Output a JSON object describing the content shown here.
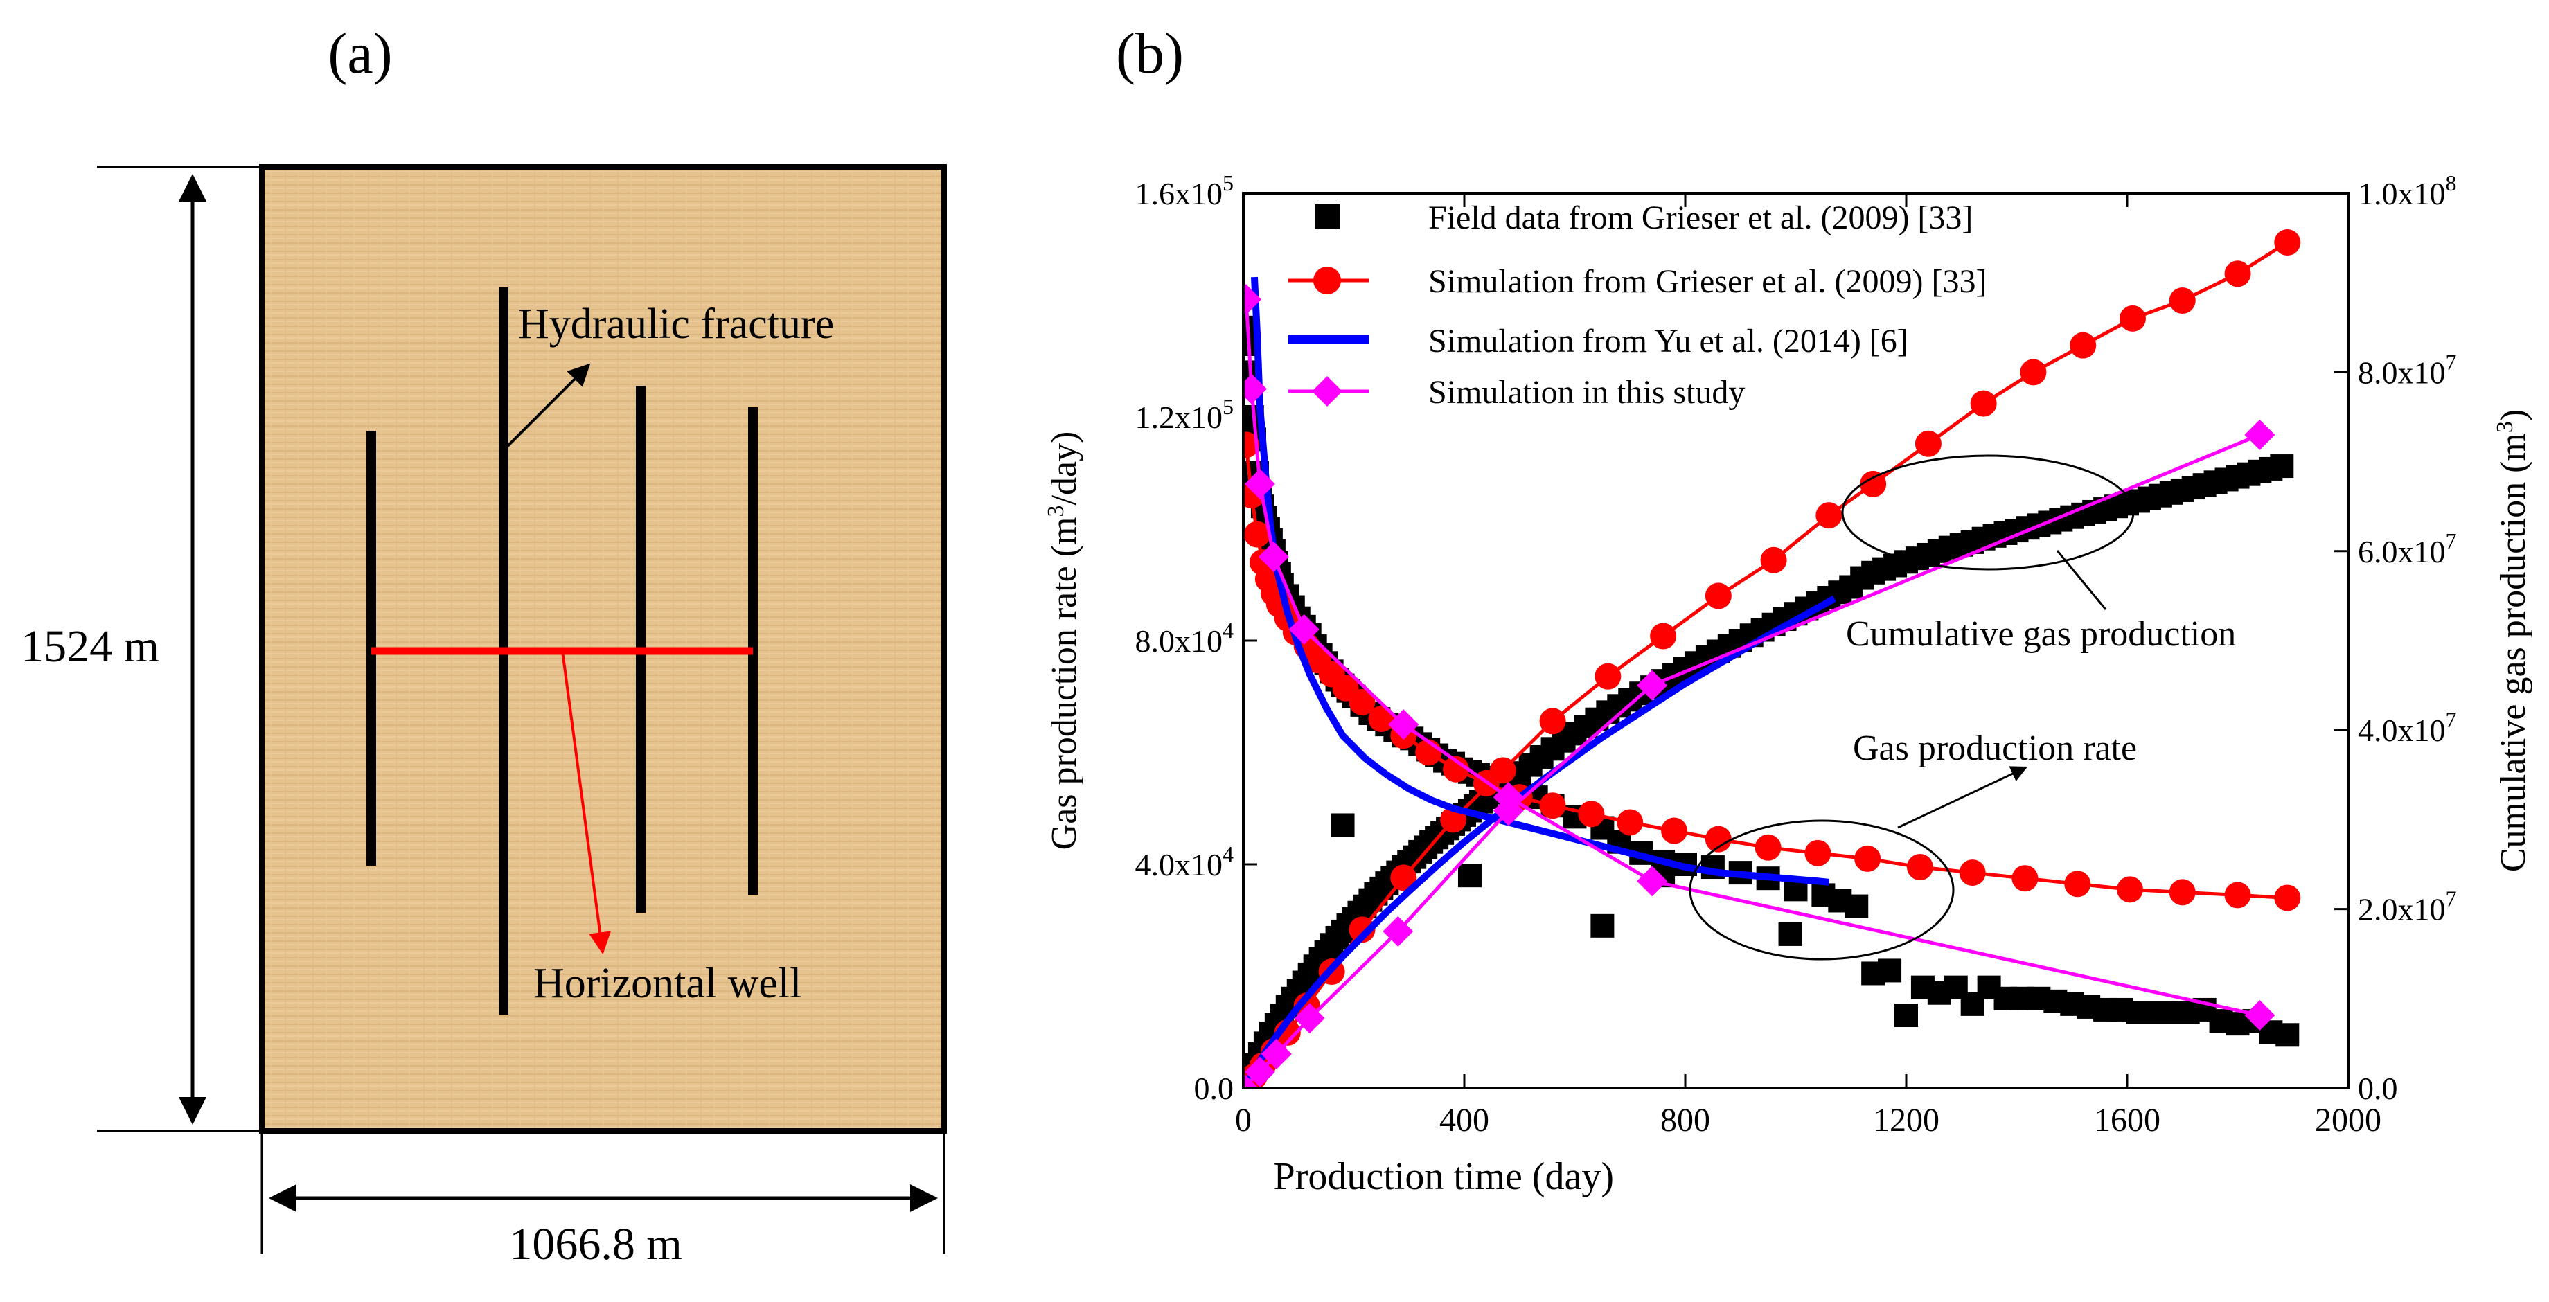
{
  "panel_a": {
    "label": "(a)",
    "height_label": "1524 m",
    "width_label": "1066.8 m",
    "fracture_label": "Hydraulic  fracture",
    "well_label": "Horizontal  well",
    "colors": {
      "reservoir": "#E6C38E",
      "fracture": "#000000",
      "well": "#FF0000"
    }
  },
  "panel_b": {
    "label": "(b)",
    "annotation_cumulative": "Cumulative gas production",
    "annotation_rate": "Gas production rate"
  },
  "chart_data": {
    "type": "scatter+line",
    "title": "",
    "xlabel": "Production time (day)",
    "ylabel_left": "Gas production rate (m",
    "ylabel_left_sup": "3",
    "ylabel_left_tail": "/day)",
    "ylabel_right": "Cumulative gas production (m",
    "ylabel_right_sup": "3",
    "ylabel_right_tail": ")",
    "xlim": [
      0,
      2000
    ],
    "ylim_left": [
      0,
      160000
    ],
    "ylim_right": [
      0,
      100000000
    ],
    "x_ticks": [
      {
        "v": 0,
        "label": "0"
      },
      {
        "v": 400,
        "label": "400"
      },
      {
        "v": 800,
        "label": "800"
      },
      {
        "v": 1200,
        "label": "1200"
      },
      {
        "v": 1600,
        "label": "1600"
      },
      {
        "v": 2000,
        "label": "2000"
      }
    ],
    "y_left_ticks": [
      {
        "v": 0,
        "m": "0.0",
        "e": ""
      },
      {
        "v": 40000,
        "m": "4.0x10",
        "e": "4"
      },
      {
        "v": 80000,
        "m": "8.0x10",
        "e": "4"
      },
      {
        "v": 120000,
        "m": "1.2x10",
        "e": "5"
      },
      {
        "v": 160000,
        "m": "1.6x10",
        "e": "5"
      }
    ],
    "y_right_ticks": [
      {
        "v": 0,
        "m": "0.0",
        "e": ""
      },
      {
        "v": 20000000,
        "m": "2.0x10",
        "e": "7"
      },
      {
        "v": 40000000,
        "m": "4.0x10",
        "e": "7"
      },
      {
        "v": 60000000,
        "m": "6.0x10",
        "e": "7"
      },
      {
        "v": 80000000,
        "m": "8.0x10",
        "e": "7"
      },
      {
        "v": 100000000,
        "m": "1.0x10",
        "e": "8"
      }
    ],
    "legend_position": "top-left",
    "series": [
      {
        "name": "Field data from Grieser et al. (2009) [33]",
        "key": "field",
        "color": "#000000",
        "marker": "square",
        "line": false,
        "rate": {
          "x": [
            5,
            8,
            12,
            16,
            20,
            25,
            30,
            35,
            40,
            45,
            50,
            55,
            60,
            65,
            70,
            80,
            90,
            100,
            110,
            120,
            130,
            140,
            150,
            160,
            170,
            180,
            190,
            200,
            215,
            230,
            245,
            260,
            275,
            290,
            305,
            320,
            335,
            350,
            365,
            380,
            395,
            410,
            425,
            440,
            455,
            470,
            485,
            500,
            530,
            560,
            600,
            650,
            680,
            720,
            760,
            800,
            850,
            900,
            950,
            1000,
            1050,
            1080,
            1110,
            1140,
            1170,
            1200,
            1230,
            1260,
            1290,
            1320,
            1350,
            1380,
            1410,
            1440,
            1470,
            1500,
            1530,
            1560,
            1590,
            1620,
            1650,
            1680,
            1710,
            1740,
            1770,
            1800,
            1830,
            1860,
            1890,
            180,
            410,
            650,
            760,
            990
          ],
          "y": [
            136000,
            133000,
            128000,
            120000,
            116000,
            110000,
            106000,
            104000,
            102000,
            100000,
            98000,
            96000,
            94000,
            92000,
            90000,
            88000,
            86000,
            84000,
            82500,
            81000,
            79000,
            77500,
            76000,
            74500,
            73000,
            72000,
            71000,
            70000,
            68500,
            67000,
            66000,
            65000,
            64000,
            63000,
            62500,
            61500,
            60500,
            59500,
            58500,
            58000,
            57000,
            56500,
            56000,
            55500,
            55000,
            54500,
            54000,
            53500,
            52000,
            50500,
            48500,
            46500,
            44000,
            42000,
            40500,
            40000,
            39500,
            38500,
            37500,
            35500,
            34500,
            33500,
            32500,
            20500,
            21000,
            13000,
            18000,
            17000,
            18000,
            15000,
            18000,
            16000,
            16000,
            16000,
            15500,
            15000,
            14500,
            14000,
            14000,
            13500,
            13500,
            13500,
            13500,
            14000,
            12000,
            11500,
            12000,
            10000,
            9500,
            47000,
            38000,
            29000,
            38000,
            27500
          ]
        },
        "cumulative": {
          "x": [
            10,
            20,
            30,
            40,
            50,
            60,
            70,
            80,
            90,
            100,
            110,
            120,
            130,
            140,
            150,
            160,
            170,
            180,
            190,
            200,
            210,
            220,
            230,
            240,
            250,
            260,
            270,
            280,
            290,
            300,
            310,
            320,
            330,
            340,
            350,
            360,
            370,
            380,
            390,
            400,
            410,
            420,
            430,
            440,
            450,
            460,
            470,
            480,
            490,
            500,
            520,
            540,
            560,
            580,
            600,
            620,
            640,
            660,
            680,
            700,
            720,
            740,
            760,
            780,
            800,
            820,
            840,
            860,
            880,
            900,
            920,
            940,
            960,
            980,
            1000,
            1020,
            1040,
            1060,
            1080,
            1100,
            1120,
            1140,
            1160,
            1180,
            1200,
            1220,
            1240,
            1260,
            1280,
            1300,
            1320,
            1340,
            1360,
            1380,
            1400,
            1420,
            1440,
            1460,
            1480,
            1500,
            1520,
            1540,
            1560,
            1580,
            1600,
            1620,
            1640,
            1660,
            1680,
            1700,
            1720,
            1740,
            1760,
            1780,
            1800,
            1820,
            1840,
            1860,
            1880
          ],
          "y": [
            1300000,
            2600000,
            3800000,
            5000000,
            6100000,
            7100000,
            8100000,
            9100000,
            10000000,
            10900000,
            11800000,
            12700000,
            13600000,
            14400000,
            15200000,
            16000000,
            16800000,
            17500000,
            18200000,
            18900000,
            19600000,
            20300000,
            21000000,
            21700000,
            22300000,
            22900000,
            23500000,
            24100000,
            24700000,
            25300000,
            25800000,
            26400000,
            26900000,
            27500000,
            28000000,
            28500000,
            29000000,
            29500000,
            30000000,
            30500000,
            31000000,
            31500000,
            32000000,
            32500000,
            33000000,
            33400000,
            33900000,
            34300000,
            34800000,
            35200000,
            36100000,
            37000000,
            37900000,
            38800000,
            39600000,
            40400000,
            41200000,
            42000000,
            42700000,
            43400000,
            44100000,
            44800000,
            45500000,
            46200000,
            46900000,
            47500000,
            48200000,
            48800000,
            49400000,
            50000000,
            50600000,
            51200000,
            51800000,
            52400000,
            53000000,
            53600000,
            54200000,
            54800000,
            55400000,
            56000000,
            57000000,
            57600000,
            58000000,
            58400000,
            58800000,
            59200000,
            59600000,
            60000000,
            60400000,
            60700000,
            61000000,
            61400000,
            61700000,
            62000000,
            62300000,
            62600000,
            62900000,
            63200000,
            63500000,
            63800000,
            64100000,
            64400000,
            64700000,
            65000000,
            65300000,
            65600000,
            65900000,
            66200000,
            66500000,
            66800000,
            67100000,
            67400000,
            67700000,
            68000000,
            68300000,
            68600000,
            68900000,
            69200000,
            69500000
          ]
        }
      },
      {
        "name": "Simulation from Grieser et al. (2009) [33]",
        "key": "grieser_sim",
        "color": "#FF0000",
        "marker": "circle",
        "line": true,
        "rate": {
          "x": [
            5,
            15,
            25,
            35,
            45,
            55,
            65,
            80,
            95,
            115,
            135,
            160,
            185,
            215,
            250,
            290,
            335,
            385,
            440,
            500,
            560,
            630,
            700,
            780,
            860,
            950,
            1040,
            1130,
            1225,
            1320,
            1415,
            1510,
            1605,
            1700,
            1800,
            1890
          ],
          "y": [
            115000,
            106000,
            99000,
            94000,
            91000,
            88500,
            86500,
            84000,
            81500,
            79000,
            76500,
            74000,
            71500,
            69000,
            66000,
            63000,
            60000,
            57000,
            54500,
            52000,
            50500,
            49000,
            47500,
            46000,
            44500,
            43000,
            42000,
            41000,
            39500,
            38500,
            37500,
            36500,
            35500,
            35000,
            34500,
            34000
          ]
        },
        "cumulative": {
          "x": [
            0,
            10,
            20,
            35,
            55,
            80,
            115,
            160,
            215,
            290,
            380,
            470,
            560,
            660,
            760,
            860,
            960,
            1060,
            1140,
            1240,
            1340,
            1430,
            1520,
            1610,
            1700,
            1800,
            1890
          ],
          "y": [
            0,
            500000,
            1300000,
            2500000,
            4100000,
            6200000,
            9200000,
            13000000,
            17700000,
            23500000,
            30000000,
            35500000,
            41000000,
            46000000,
            50500000,
            55000000,
            59000000,
            64000000,
            67500000,
            72000000,
            76500000,
            80000000,
            83000000,
            86000000,
            88000000,
            91000000,
            94500000
          ]
        }
      },
      {
        "name": "Simulation from Yu et al. (2014) [6]",
        "key": "yu_sim",
        "color": "#0000FF",
        "marker": "none",
        "line": true,
        "rate": {
          "x": [
            20,
            25,
            30,
            40,
            50,
            60,
            80,
            100,
            120,
            150,
            180,
            220,
            260,
            300,
            340,
            380,
            420,
            460,
            500,
            560,
            620,
            680,
            740,
            800,
            860,
            920,
            980,
            1040,
            1060
          ],
          "y": [
            145000,
            135000,
            122000,
            110000,
            100000,
            93000,
            85000,
            79000,
            74000,
            68000,
            63000,
            59000,
            56000,
            53500,
            51500,
            50000,
            49000,
            48000,
            47000,
            45500,
            44000,
            42500,
            41000,
            39500,
            38500,
            38000,
            37500,
            37000,
            36800
          ]
        },
        "cumulative": {
          "x": [
            0,
            20,
            40,
            60,
            80,
            100,
            140,
            180,
            220,
            260,
            300,
            350,
            400,
            450,
            500,
            550,
            600,
            650,
            700,
            750,
            800,
            850,
            900,
            950,
            1000,
            1050,
            1070
          ],
          "y": [
            0,
            2000000,
            4000000,
            5800000,
            7500000,
            9100000,
            12000000,
            14700000,
            17200000,
            19700000,
            22000000,
            24800000,
            27500000,
            30000000,
            32500000,
            34800000,
            37000000,
            39200000,
            41200000,
            43200000,
            45200000,
            47000000,
            48800000,
            50600000,
            52300000,
            54000000,
            54700000
          ]
        }
      },
      {
        "name": "Simulation in this study",
        "key": "this_study",
        "color": "#FF00FF",
        "marker": "diamond",
        "line": true,
        "rate": {
          "x": [
            5,
            15,
            30,
            55,
            110,
            290,
            480,
            740,
            1840
          ],
          "y": [
            141000,
            125000,
            108000,
            95000,
            82000,
            65000,
            52000,
            37000,
            13000
          ]
        },
        "cumulative": {
          "x": [
            0,
            30,
            60,
            120,
            280,
            480,
            740,
            1840
          ],
          "y": [
            0,
            1800000,
            3800000,
            7800000,
            17500000,
            31000000,
            45000000,
            73000000
          ]
        }
      }
    ]
  }
}
